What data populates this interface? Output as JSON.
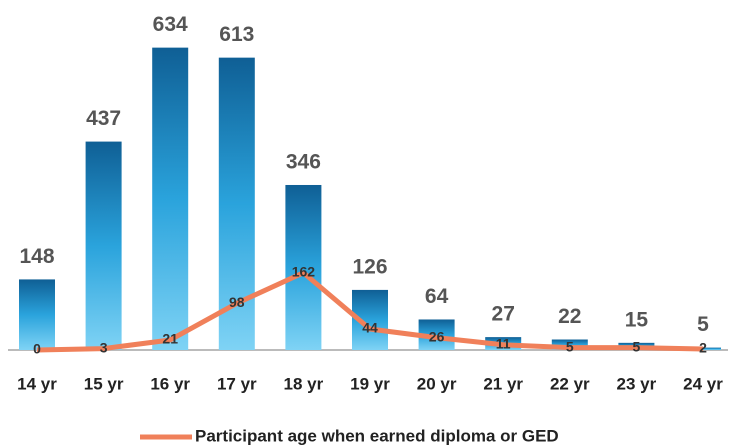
{
  "chart_data": {
    "type": "bar",
    "categories": [
      "14 yr",
      "15 yr",
      "16 yr",
      "17 yr",
      "18 yr",
      "19 yr",
      "20 yr",
      "21 yr",
      "22 yr",
      "23 yr",
      "24 yr"
    ],
    "series": [
      {
        "type": "bar",
        "color": "#1a7bb8",
        "values": [
          148,
          437,
          634,
          613,
          346,
          126,
          64,
          27,
          22,
          15,
          5
        ]
      },
      {
        "type": "line",
        "name": "Participant age when earned diploma or GED",
        "color": "#f0805a",
        "values": [
          0,
          3,
          21,
          98,
          162,
          44,
          26,
          11,
          5,
          5,
          2
        ]
      }
    ],
    "ylim": [
      0,
      650
    ],
    "legend": "bottom"
  }
}
